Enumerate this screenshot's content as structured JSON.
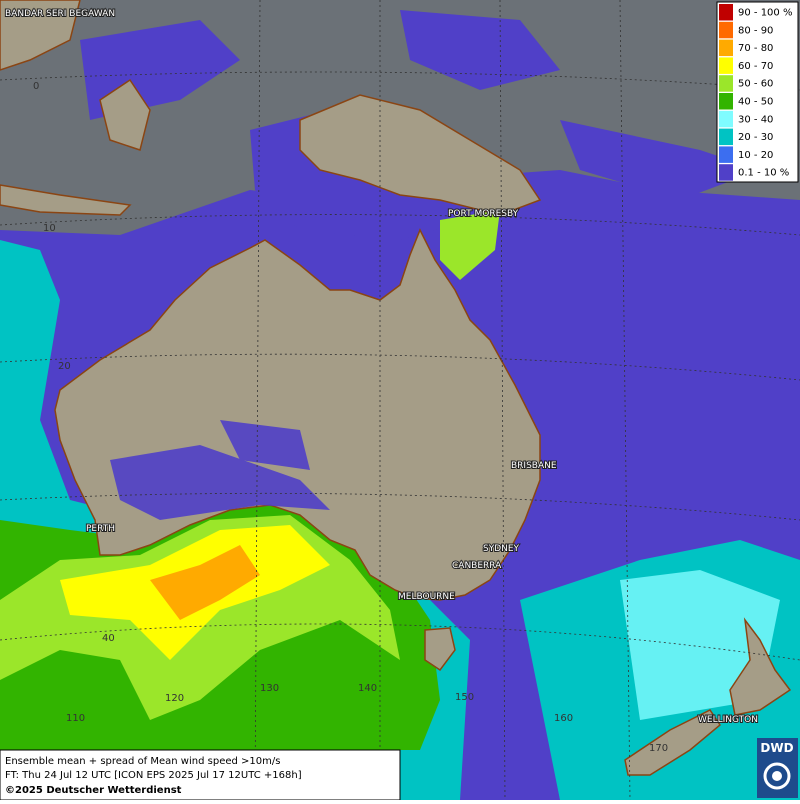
{
  "map": {
    "cities": [
      "BANDAR SERI BEGAWAN",
      "PORT MORESBY",
      "BRISBANE",
      "PERTH",
      "SYDNEY",
      "CANBERRA",
      "MELBOURNE",
      "WELLINGTON"
    ],
    "grid_labels": [
      "0",
      "10",
      "20",
      "40",
      "110",
      "120",
      "130",
      "140",
      "150",
      "160",
      "170"
    ]
  },
  "legend": {
    "items": [
      {
        "label": "90 - 100 %",
        "color": "#c00000"
      },
      {
        "label": "80 - 90",
        "color": "#ff6a00"
      },
      {
        "label": "70 - 80",
        "color": "#ffaa00"
      },
      {
        "label": "60 - 70",
        "color": "#ffff00"
      },
      {
        "label": "50 - 60",
        "color": "#9be62a"
      },
      {
        "label": "40 - 50",
        "color": "#32b400"
      },
      {
        "label": "30 - 40",
        "color": "#7ffcff"
      },
      {
        "label": "20 - 30",
        "color": "#00c3c3"
      },
      {
        "label": "10 - 20",
        "color": "#3c6ef0"
      },
      {
        "label": "0.1 - 10 %",
        "color": "#5040c8"
      }
    ]
  },
  "footer": {
    "lines": [
      "Ensemble mean + spread of Mean wind speed >10m/s",
      "FT: Thu 24 Jul 12 UTC [ICON EPS 2025 Jul 17 12UTC +168h]",
      "©2025 Deutscher Wetterdienst"
    ]
  },
  "logo": "DWD"
}
